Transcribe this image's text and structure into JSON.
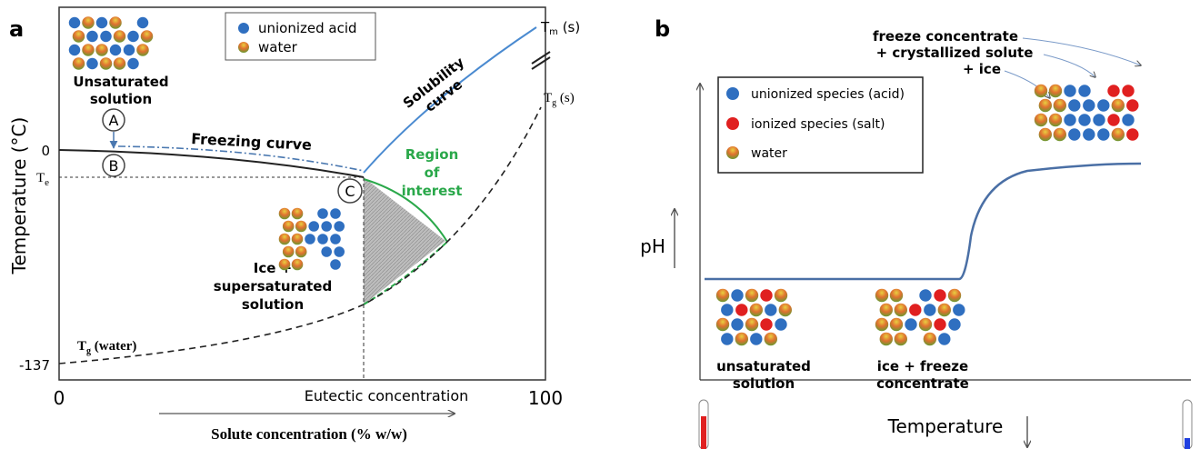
{
  "panel_a": {
    "label": "a",
    "legend": [
      "unionized acid",
      "water"
    ],
    "y_axis_title": "Temperature (°C)",
    "x_axis_title": "Solute concentration (% w/w)",
    "y_ticks": [
      "0",
      "-137"
    ],
    "te": {
      "main": "T",
      "sub": "e"
    },
    "x_ticks": [
      "0",
      "100"
    ],
    "eutectic": "Eutectic concentration",
    "tm": {
      "main": "T",
      "sub": "m",
      "rest": " (s)"
    },
    "tg": {
      "main": "T",
      "sub": "g",
      "rest": " (s)"
    },
    "tg_water": {
      "main": "T",
      "sub": "g",
      "rest": " (water)"
    },
    "unsaturated": [
      "Unsaturated",
      "solution"
    ],
    "points": [
      "A",
      "B",
      "C"
    ],
    "freezing_curve": "Freezing curve",
    "solubility_curve": [
      "Solubility",
      "curve"
    ],
    "region": [
      "Region",
      "of",
      "interest"
    ],
    "ice_super": [
      "Ice +",
      "supersaturated",
      "solution"
    ]
  },
  "panel_b": {
    "label": "b",
    "legend": [
      "unionized species (acid)",
      "ionized species (salt)",
      "water"
    ],
    "y_axis_title": "pH",
    "x_axis_title": "Temperature",
    "freeze_top": [
      "freeze concentrate",
      "+ crystallized solute",
      "+ ice"
    ],
    "unsaturated": [
      "unsaturated",
      "solution"
    ],
    "ice_freeze": [
      "ice + freeze",
      "concentrate"
    ]
  }
}
